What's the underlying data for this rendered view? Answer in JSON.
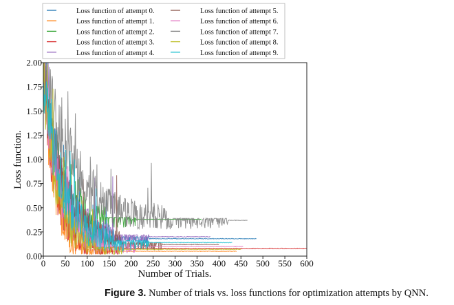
{
  "caption": {
    "label": "Figure 3.",
    "text": " Number of trials vs. loss functions for optimization attempts by QNN."
  },
  "chart_data": {
    "type": "line",
    "title": "",
    "xlabel": "Number of Trials.",
    "ylabel": "Loss function.",
    "xlim": [
      0,
      600
    ],
    "ylim": [
      0,
      2.0
    ],
    "xticks": [
      "0",
      "50",
      "100",
      "150",
      "200",
      "250",
      "300",
      "350",
      "400",
      "450",
      "500",
      "550",
      "600"
    ],
    "yticks": [
      "0.00",
      "0.25",
      "0.50",
      "0.75",
      "1.00",
      "1.25",
      "1.50",
      "1.75",
      "2.00"
    ],
    "grid": false,
    "legend_position": "top, two columns above the plot",
    "series": [
      {
        "name": "Loss function of attempt 0.",
        "color": "#1f77b4",
        "trials": 485,
        "final": 0.18,
        "tau": 40,
        "noise": 0.08
      },
      {
        "name": "Loss function of attempt 1.",
        "color": "#ff7f0e",
        "trials": 440,
        "final": 0.05,
        "tau": 25,
        "noise": 0.1
      },
      {
        "name": "Loss function of attempt 2.",
        "color": "#2ca02c",
        "trials": 360,
        "final": 0.38,
        "tau": 35,
        "noise": 0.1
      },
      {
        "name": "Loss function of attempt 3.",
        "color": "#d62728",
        "trials": 600,
        "final": 0.08,
        "tau": 30,
        "noise": 0.1
      },
      {
        "name": "Loss function of attempt 4.",
        "color": "#9467bd",
        "trials": 380,
        "final": 0.2,
        "tau": 40,
        "noise": 0.09
      },
      {
        "name": "Loss function of attempt 5.",
        "color": "#8c564b",
        "trials": 400,
        "final": 0.12,
        "tau": 45,
        "noise": 0.08
      },
      {
        "name": "Loss function of attempt 6.",
        "color": "#e377c2",
        "trials": 455,
        "final": 0.1,
        "tau": 35,
        "noise": 0.09
      },
      {
        "name": "Loss function of attempt 7.",
        "color": "#7f7f7f",
        "trials": 465,
        "final": 0.37,
        "tau": 70,
        "noise": 0.1
      },
      {
        "name": "Loss function of attempt 8.",
        "color": "#bcbd22",
        "trials": 450,
        "final": 0.07,
        "tau": 30,
        "noise": 0.09
      },
      {
        "name": "Loss function of attempt 9.",
        "color": "#17becf",
        "trials": 430,
        "final": 0.14,
        "tau": 40,
        "noise": 0.1
      }
    ]
  }
}
